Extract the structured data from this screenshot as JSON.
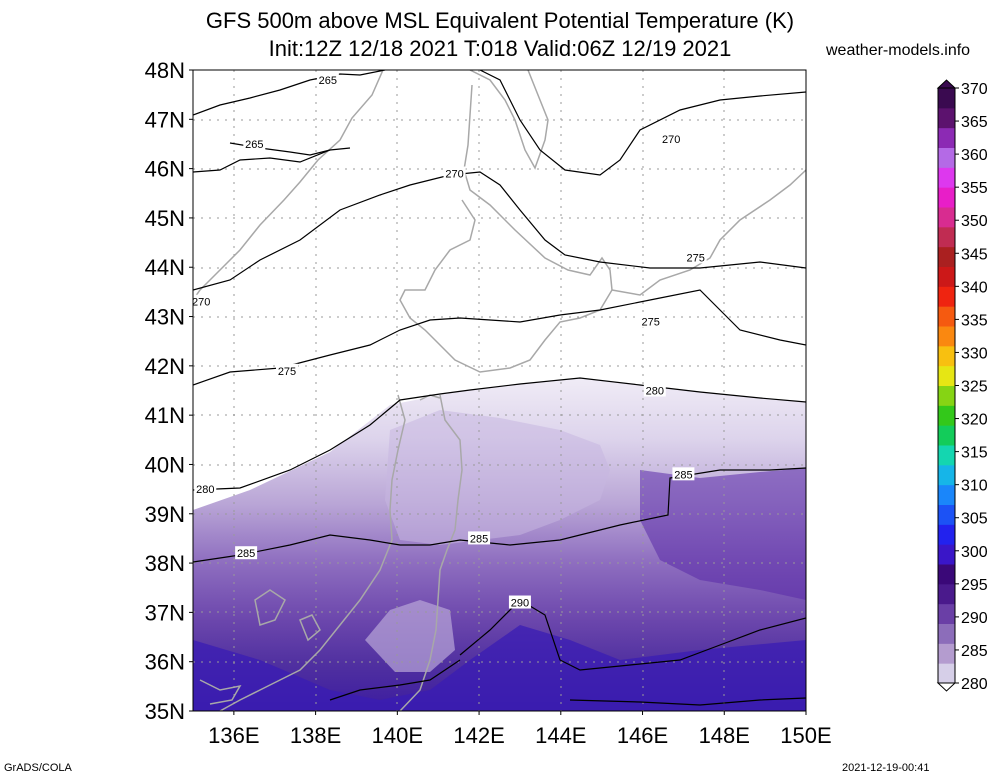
{
  "header": {
    "title": "GFS 500m above MSL Equivalent Potential Temperature (K)",
    "subtitle": "Init:12Z 12/18 2021 T:018 Valid:06Z 12/19 2021",
    "site": "weather-models.info"
  },
  "map": {
    "lon_range": [
      135,
      150
    ],
    "lat_range": [
      35,
      48
    ],
    "lon_ticks": [
      "136E",
      "138E",
      "140E",
      "142E",
      "144E",
      "146E",
      "148E",
      "150E"
    ],
    "lat_ticks": [
      "48N",
      "47N",
      "46N",
      "45N",
      "44N",
      "43N",
      "42N",
      "41N",
      "40N",
      "39N",
      "38N",
      "37N",
      "36N",
      "35N"
    ],
    "contour_labels": [
      {
        "text": "265",
        "lon": 138.3,
        "lat": 47.8
      },
      {
        "text": "265",
        "lon": 136.5,
        "lat": 46.5
      },
      {
        "text": "270",
        "lon": 146.7,
        "lat": 46.6
      },
      {
        "text": "270",
        "lon": 141.4,
        "lat": 45.9
      },
      {
        "text": "270",
        "lon": 135.2,
        "lat": 43.3
      },
      {
        "text": "275",
        "lon": 147.3,
        "lat": 44.2
      },
      {
        "text": "275",
        "lon": 146.2,
        "lat": 42.9
      },
      {
        "text": "275",
        "lon": 137.3,
        "lat": 41.9
      },
      {
        "text": "280",
        "lon": 146.3,
        "lat": 41.5
      },
      {
        "text": "280",
        "lon": 135.3,
        "lat": 39.5
      },
      {
        "text": "285",
        "lon": 147.0,
        "lat": 39.8
      },
      {
        "text": "285",
        "lon": 142.0,
        "lat": 38.5
      },
      {
        "text": "285",
        "lon": 136.3,
        "lat": 38.2
      },
      {
        "text": "290",
        "lon": 143.0,
        "lat": 37.2
      }
    ]
  },
  "colorbar": {
    "labels": [
      "370",
      "365",
      "360",
      "355",
      "350",
      "345",
      "340",
      "335",
      "330",
      "325",
      "320",
      "315",
      "310",
      "305",
      "300",
      "295",
      "290",
      "285",
      "280"
    ],
    "colors": [
      "#d6cfe8",
      "#b49ccf",
      "#8c6dba",
      "#6a3fa6",
      "#4a1a8c",
      "#3a0878",
      "#3a16c8",
      "#2222ee",
      "#1c52f5",
      "#1a86fa",
      "#16b5e8",
      "#14d6b0",
      "#13cc5a",
      "#33c81a",
      "#86d414",
      "#e6e614",
      "#f8c010",
      "#fa8810",
      "#f55a10",
      "#ef2410",
      "#cc1818",
      "#aa2020",
      "#c02c52",
      "#d82c90",
      "#e81ec8",
      "#dd38ee",
      "#b46ae6",
      "#8c2ab4",
      "#5c126e",
      "#3a0a50"
    ]
  },
  "footer": {
    "left": "GrADS/COLA",
    "right": "2021-12-19-00:41"
  }
}
